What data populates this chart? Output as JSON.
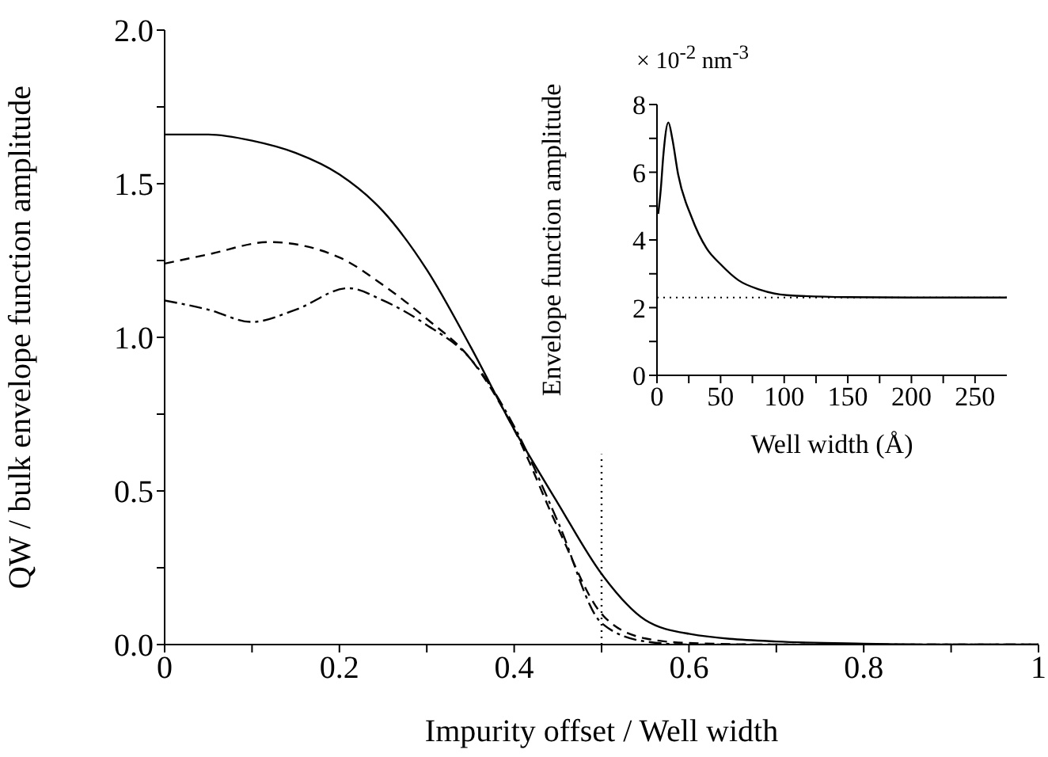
{
  "chart_data": [
    {
      "type": "line",
      "xlabel": "Impurity offset / Well width",
      "ylabel": "QW / bulk envelope function amplitude",
      "xlim": [
        0,
        1
      ],
      "ylim": [
        0,
        2
      ],
      "xticks": [
        0,
        {
          "value": 0.1,
          "label": null
        },
        0.2,
        {
          "value": 0.3,
          "label": null
        },
        0.4,
        {
          "value": 0.5,
          "label": null
        },
        0.6,
        {
          "value": 0.7,
          "label": null
        },
        0.8,
        {
          "value": 0.9,
          "label": null
        },
        1
      ],
      "yticks": [
        {
          "value": 0,
          "label": "0.0"
        },
        {
          "value": 0.25,
          "label": null
        },
        {
          "value": 0.5,
          "label": "0.5"
        },
        {
          "value": 0.75,
          "label": null
        },
        {
          "value": 1,
          "label": "1.0"
        },
        {
          "value": 1.25,
          "label": null
        },
        {
          "value": 1.5,
          "label": "1.5"
        },
        {
          "value": 1.75,
          "label": null
        },
        {
          "value": 2,
          "label": "2.0"
        }
      ],
      "marker": "none",
      "series": [
        {
          "color": "#000000",
          "line_style": "solid",
          "x": [
            0,
            0.05,
            0.1,
            0.15,
            0.2,
            0.25,
            0.3,
            0.35,
            0.4,
            0.45,
            0.5,
            0.55,
            0.6,
            0.7,
            0.8,
            0.9,
            1
          ],
          "values": [
            1.66,
            1.66,
            1.64,
            1.6,
            1.53,
            1.41,
            1.22,
            0.97,
            0.7,
            0.46,
            0.23,
            0.08,
            0.035,
            0.01,
            0.003,
            0,
            0
          ]
        },
        {
          "color": "#000000",
          "line_style": "dashed",
          "x": [
            0,
            0.05,
            0.12,
            0.2,
            0.25,
            0.3,
            0.35,
            0.4,
            0.45,
            0.5,
            0.55,
            0.6,
            0.7,
            1
          ],
          "values": [
            1.24,
            1.27,
            1.31,
            1.26,
            1.17,
            1.06,
            0.93,
            0.7,
            0.38,
            0.1,
            0.02,
            0.005,
            0,
            0
          ]
        },
        {
          "color": "#000000",
          "line_style": "dashdot",
          "x": [
            0,
            0.05,
            0.1,
            0.15,
            0.21,
            0.25,
            0.3,
            0.35,
            0.4,
            0.45,
            0.5,
            0.55,
            0.6,
            1
          ],
          "values": [
            1.12,
            1.09,
            1.05,
            1.09,
            1.16,
            1.12,
            1.04,
            0.93,
            0.71,
            0.4,
            0.07,
            0.01,
            0,
            0
          ]
        },
        {
          "color": "#000000",
          "line_style": "dotted",
          "x": [
            0.5,
            0.5
          ],
          "values": [
            0,
            0.62
          ]
        }
      ]
    },
    {
      "type": "line",
      "xlabel": "Well width (Å)",
      "ylabel": "Envelope function amplitude",
      "annotations": [
        "× 10$^{-2}$ nm$^{-3}$"
      ],
      "xlim": [
        0,
        275
      ],
      "ylim": [
        0,
        8
      ],
      "xticks": [
        0,
        {
          "value": 25,
          "label": null
        },
        50,
        {
          "value": 75,
          "label": null
        },
        100,
        {
          "value": 125,
          "label": null
        },
        150,
        {
          "value": 175,
          "label": null
        },
        200,
        {
          "value": 225,
          "label": null
        },
        250
      ],
      "yticks": [
        0,
        {
          "value": 1,
          "label": null
        },
        2,
        {
          "value": 3,
          "label": null
        },
        4,
        {
          "value": 5,
          "label": null
        },
        6,
        {
          "value": 7,
          "label": null
        },
        8
      ],
      "marker": "none",
      "ref_lines": [
        {
          "axis": "y",
          "value": 2.3,
          "line_style": "dotted",
          "color": "#000000"
        }
      ],
      "series": [
        {
          "color": "#000000",
          "line_style": "solid",
          "x": [
            1,
            3,
            5,
            9,
            12,
            16.6,
            27,
            39,
            50,
            64,
            81,
            102,
            150,
            200,
            275
          ],
          "values": [
            4.77,
            5.5,
            6.5,
            7.47,
            7.0,
            5.94,
            4.69,
            3.75,
            3.28,
            2.81,
            2.53,
            2.37,
            2.31,
            2.3,
            2.3
          ]
        }
      ]
    }
  ]
}
